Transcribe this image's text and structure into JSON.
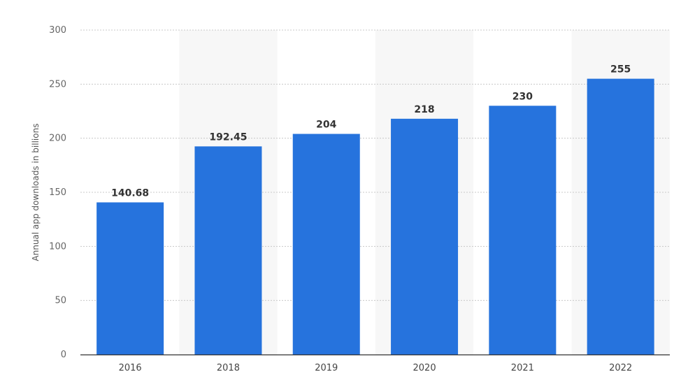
{
  "chart_data": {
    "type": "bar",
    "categories": [
      "2016",
      "2018",
      "2019",
      "2020",
      "2021",
      "2022"
    ],
    "values": [
      140.68,
      192.45,
      204,
      218,
      230,
      255
    ],
    "value_labels": [
      "140.68",
      "192.45",
      "204",
      "218",
      "230",
      "255"
    ],
    "title": "",
    "xlabel": "",
    "ylabel": "Annual app downloads in billions",
    "ylim": [
      0,
      300
    ],
    "yticks": [
      0,
      50,
      100,
      150,
      200,
      250,
      300
    ],
    "ytick_labels": [
      "0",
      "50",
      "100",
      "150",
      "200",
      "250",
      "300"
    ],
    "grid": true,
    "legend": "none",
    "colors": {
      "bar": "#2673dd",
      "grid": "#c8c8c8",
      "band": "#f7f7f7",
      "axis": "#333333"
    }
  }
}
